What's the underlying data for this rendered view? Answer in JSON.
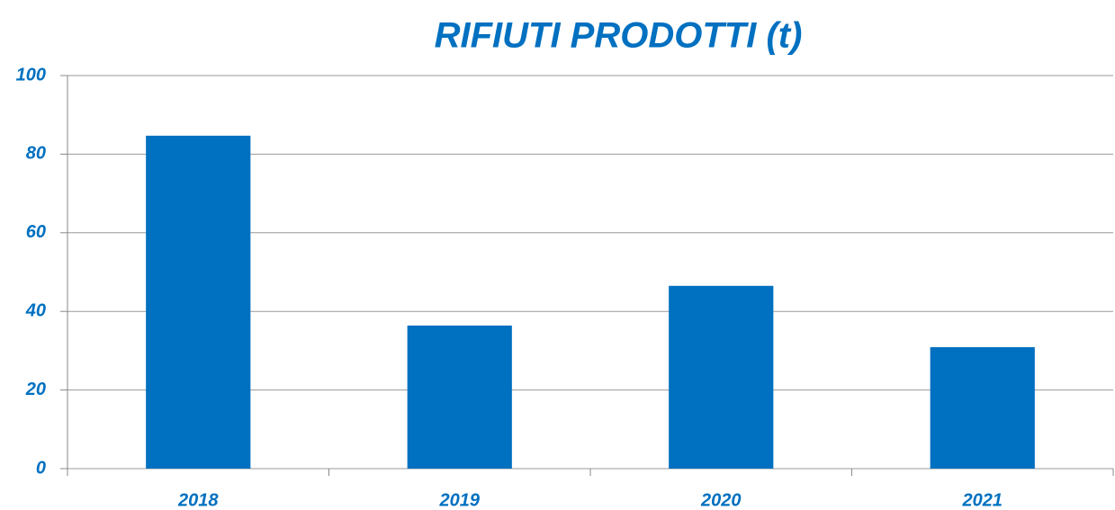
{
  "chart_data": {
    "type": "bar",
    "title": "RIFIUTI PRODOTTI (t)",
    "categories": [
      "2018",
      "2019",
      "2020",
      "2021"
    ],
    "values": [
      84.7,
      36.4,
      46.5,
      30.9
    ],
    "color": "#0070c0",
    "ylim": [
      0,
      100
    ],
    "yticks": [
      0,
      20,
      40,
      60,
      80,
      100
    ],
    "grid": true
  }
}
